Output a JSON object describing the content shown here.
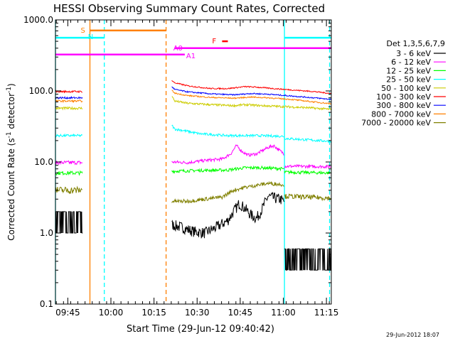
{
  "chart_data": {
    "type": "line",
    "title": "HESSI Observing Summary Count Rates, Corrected",
    "xlabel": "Start Time (29-Jun-12 09:40:42)",
    "ylabel_parts": [
      "Corrected Count Rate (s",
      "-1",
      " detector",
      "-1",
      ")"
    ],
    "y_scale": "log",
    "ylim": [
      0.1,
      1000
    ],
    "xlim_minutes": [
      0,
      96
    ],
    "y_tick_labels": [
      "0.1",
      "1.0",
      "10.0",
      "100.0",
      "1000.0"
    ],
    "x_tick_labels": [
      "09:45",
      "10:00",
      "10:15",
      "10:30",
      "10:45",
      "11:00",
      "11:15"
    ],
    "x_tick_minutes": [
      4.3,
      19.3,
      34.3,
      49.3,
      64.3,
      79.3,
      94.3
    ],
    "grid": false,
    "legend_title": "Det 1,3,5,6,7,9",
    "legend_position": "right",
    "series": [
      {
        "name": "3 - 6 keV",
        "color": "#000000",
        "segments": [
          {
            "t": [
              0,
              4,
              9.5
            ],
            "v": [
              1.35,
              1.35,
              1.35
            ],
            "noise": 0.6,
            "lo": 1.0,
            "hi": 2.0
          },
          {
            "t": [
              40.5,
              44,
              48,
              52,
              56,
              60,
              62,
              64,
              66,
              68,
              70,
              72,
              74,
              76,
              78,
              79.6
            ],
            "v": [
              1.3,
              1.2,
              1.05,
              1.0,
              1.2,
              1.5,
              2.0,
              2.6,
              2.2,
              1.8,
              1.6,
              2.2,
              3.3,
              3.1,
              3.0,
              2.8
            ],
            "noise": 0.18
          },
          {
            "t": [
              79.7,
              96
            ],
            "v": [
              0.45,
              0.45
            ],
            "noise": 0.5,
            "lo": 0.3,
            "hi": 0.6
          }
        ]
      },
      {
        "name": "6 - 12 keV",
        "color": "#ff00ff",
        "segments": [
          {
            "t": [
              0,
              9.5
            ],
            "v": [
              9.8,
              9.8
            ],
            "noise": 0.06
          },
          {
            "t": [
              40.5,
              46,
              52,
              58,
              61,
              63,
              65,
              67,
              70,
              72,
              74,
              76,
              78,
              79.6
            ],
            "v": [
              10.0,
              9.8,
              10.5,
              11.0,
              13.0,
              17.0,
              14.0,
              12.5,
              13.0,
              14.5,
              16.0,
              17.0,
              14.5,
              13.0
            ],
            "noise": 0.05
          },
          {
            "t": [
              79.7,
              96
            ],
            "v": [
              8.7,
              8.6
            ],
            "noise": 0.05
          }
        ]
      },
      {
        "name": "12 - 25 keV",
        "color": "#00ff00",
        "segments": [
          {
            "t": [
              0,
              9.5
            ],
            "v": [
              7.0,
              7.0
            ],
            "noise": 0.06
          },
          {
            "t": [
              40.5,
              50,
              60,
              66,
              72,
              79.6
            ],
            "v": [
              7.4,
              7.6,
              7.7,
              8.3,
              8.3,
              8.0
            ],
            "noise": 0.05
          },
          {
            "t": [
              79.7,
              96
            ],
            "v": [
              7.2,
              7.0
            ],
            "noise": 0.05
          }
        ]
      },
      {
        "name": "25 - 50 keV",
        "color": "#00ffff",
        "segments": [
          {
            "t": [
              0,
              9.5
            ],
            "v": [
              23.5,
              23.5
            ],
            "noise": 0.04
          },
          {
            "t": [
              40.5,
              41.5,
              44,
              50,
              60,
              70,
              79.6
            ],
            "v": [
              33,
              29,
              28,
              25,
              23.5,
              23.5,
              23.0
            ],
            "noise": 0.04
          },
          {
            "t": [
              79.7,
              96
            ],
            "v": [
              21.5,
              19.5
            ],
            "noise": 0.04
          }
        ]
      },
      {
        "name": "50 - 100 keV",
        "color": "#cccc00",
        "segments": [
          {
            "t": [
              0,
              9.5
            ],
            "v": [
              57,
              57
            ],
            "noise": 0.04
          },
          {
            "t": [
              40.5,
              41.5,
              46,
              54,
              62,
              66,
              72,
              80,
              88,
              96
            ],
            "v": [
              85,
              72,
              67,
              64,
              62,
              64,
              62,
              60,
              58,
              55
            ],
            "noise": 0.035
          }
        ]
      },
      {
        "name": "100 - 300 keV",
        "color": "#ff0000",
        "segments": [
          {
            "t": [
              0,
              9.5
            ],
            "v": [
              98,
              98
            ],
            "noise": 0.03
          },
          {
            "t": [
              40.5,
              41.5,
              46,
              54,
              60,
              66,
              70,
              76,
              84,
              90,
              96
            ],
            "v": [
              140,
              130,
              118,
              108,
              108,
              115,
              113,
              108,
              102,
              98,
              92
            ],
            "noise": 0.02
          }
        ]
      },
      {
        "name": "300 - 800 keV",
        "color": "#0000ff",
        "segments": [
          {
            "t": [
              0,
              9.5
            ],
            "v": [
              80,
              80
            ],
            "noise": 0.03
          },
          {
            "t": [
              40.5,
              41.5,
              46,
              54,
              62,
              68,
              74,
              82,
              90,
              96
            ],
            "v": [
              115,
              105,
              97,
              91,
              88,
              92,
              90,
              85,
              80,
              76
            ],
            "noise": 0.02
          }
        ]
      },
      {
        "name": "800 - 7000 keV",
        "color": "#ff8000",
        "segments": [
          {
            "t": [
              0,
              9.5
            ],
            "v": [
              72,
              72
            ],
            "noise": 0.03
          },
          {
            "t": [
              40.5,
              41.5,
              46,
              54,
              62,
              68,
              74,
              82,
              90,
              96
            ],
            "v": [
              102,
              93,
              86,
              81,
              79,
              82,
              80,
              76,
              70,
              66
            ],
            "noise": 0.02
          }
        ]
      },
      {
        "name": "7000 - 20000 keV",
        "color": "#808000",
        "segments": [
          {
            "t": [
              0,
              9.5
            ],
            "v": [
              4.0,
              4.0
            ],
            "noise": 0.12
          },
          {
            "t": [
              40.5,
              46,
              52,
              58,
              62,
              66,
              70,
              74,
              79.6
            ],
            "v": [
              2.8,
              2.8,
              3.0,
              3.2,
              4.0,
              4.4,
              4.7,
              5.0,
              4.8
            ],
            "noise": 0.06
          },
          {
            "t": [
              79.7,
              96
            ],
            "v": [
              3.3,
              3.1
            ],
            "noise": 0.08
          }
        ]
      }
    ],
    "flags": [
      {
        "label": "S",
        "color": "#ff8000",
        "row_value": 710,
        "start": 12,
        "end": 38.5
      },
      {
        "label": "N",
        "color": "#00ffff",
        "row_value": 560,
        "start": 0,
        "end": 17,
        "extra_bar": [
          79.7,
          96
        ]
      },
      {
        "label": "F",
        "color": "#ff0000",
        "row_value": 500,
        "start": 58,
        "end": 60,
        "label_offset": -4
      },
      {
        "label": "A0",
        "color": "#ff00ff",
        "row_value": 400,
        "start": 41.5,
        "end": 96,
        "label_offset": -5
      },
      {
        "label": "A1",
        "color": "#ff00ff",
        "row_value": 325,
        "start": 0,
        "end": 45,
        "label_offset": 1
      }
    ],
    "event_lines": [
      {
        "minute": 0,
        "color": "#00ffff",
        "style": "solid"
      },
      {
        "minute": 12,
        "color": "#ff8000",
        "style": "solid"
      },
      {
        "minute": 17,
        "color": "#00ffff",
        "style": "dashed"
      },
      {
        "minute": 38.5,
        "color": "#ff8000",
        "style": "dashed"
      },
      {
        "minute": 79.7,
        "color": "#00ffff",
        "style": "solid"
      },
      {
        "minute": 95.4,
        "color": "#00ffff",
        "style": "dashed"
      }
    ]
  },
  "footer": {
    "timestamp": "29-Jun-2012 18:07"
  }
}
